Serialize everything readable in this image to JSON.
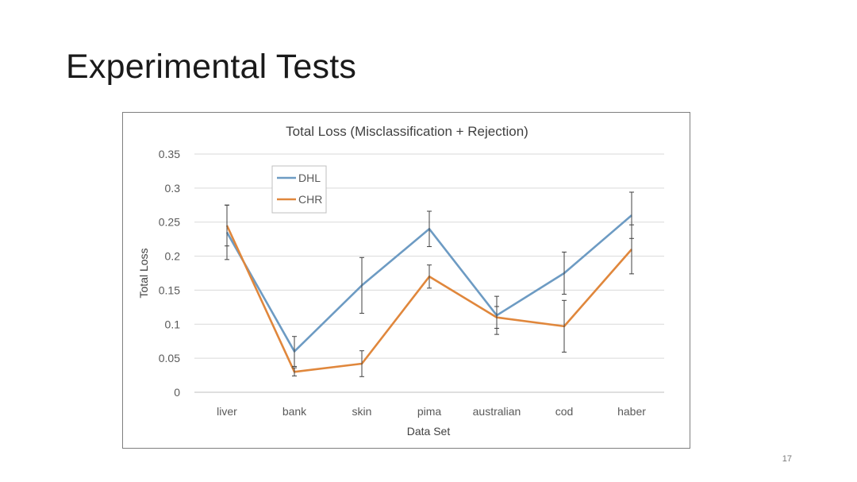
{
  "slide": {
    "title": "Experimental Tests",
    "page_number": "17"
  },
  "chart_data": {
    "type": "line",
    "title": "Total Loss (Misclassification + Rejection)",
    "xlabel": "Data Set",
    "ylabel": "Total Loss",
    "categories": [
      "liver",
      "bank",
      "skin",
      "pima",
      "australian",
      "cod",
      "haber"
    ],
    "ylim": [
      0,
      0.35
    ],
    "yticks": [
      0,
      0.05,
      0.1,
      0.15,
      0.2,
      0.25,
      0.3,
      0.35
    ],
    "ytick_labels": [
      "0",
      "0.05",
      "0.1",
      "0.15",
      "0.2",
      "0.25",
      "0.3",
      "0.35"
    ],
    "grid": true,
    "legend_position": "top-left",
    "series": [
      {
        "name": "DHL",
        "color": "#6d9bc3",
        "values": [
          0.235,
          0.06,
          0.157,
          0.24,
          0.113,
          0.175,
          0.26
        ],
        "error": [
          0.04,
          0.022,
          0.041,
          0.026,
          0.028,
          0.031,
          0.034
        ]
      },
      {
        "name": "CHR",
        "color": "#e0873c",
        "values": [
          0.245,
          0.03,
          0.042,
          0.17,
          0.11,
          0.097,
          0.21
        ],
        "error": [
          0.03,
          0.006,
          0.019,
          0.017,
          0.016,
          0.038,
          0.036
        ]
      }
    ]
  }
}
